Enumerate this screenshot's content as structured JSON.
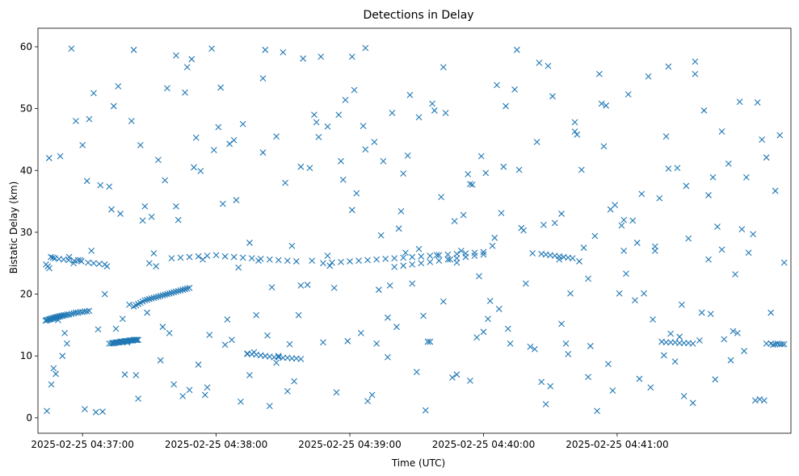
{
  "chart_data": {
    "type": "scatter",
    "title": "Detections in Delay",
    "xlabel": "Time (UTC)",
    "ylabel": "Bistatic Delay (km)",
    "x_is_time": true,
    "xlim": [
      "2025-02-25 04:36:40",
      "2025-02-25 04:42:18"
    ],
    "ylim": [
      -2.5,
      63
    ],
    "x_ticks": [
      {
        "value": "2025-02-25 04:37:00",
        "label": "2025-02-25 04:37:00"
      },
      {
        "value": "2025-02-25 04:38:00",
        "label": "2025-02-25 04:38:00"
      },
      {
        "value": "2025-02-25 04:39:00",
        "label": "2025-02-25 04:39:00"
      },
      {
        "value": "2025-02-25 04:40:00",
        "label": "2025-02-25 04:40:00"
      },
      {
        "value": "2025-02-25 04:41:00",
        "label": "2025-02-25 04:41:00"
      }
    ],
    "y_ticks": [
      0,
      10,
      20,
      30,
      40,
      50,
      60
    ],
    "grid": false,
    "marker": "x",
    "color": "#1f77b4",
    "x_start": "2025-02-25 04:36:40",
    "series": [
      {
        "name": "",
        "x_seconds_from_start": [
          3.4,
          3.8,
          4.3,
          4.8,
          5.2,
          5.6,
          6.0,
          6.5,
          7.0,
          7.5,
          8.0,
          8.5,
          9.0,
          9.5,
          10.0,
          10.6,
          11.2,
          11.8,
          12.5,
          13.2,
          14.0,
          15.0,
          16.0,
          17.0,
          18.0,
          19.0,
          20.0,
          21.0,
          22.0,
          23.0,
          3.6,
          4.4,
          5.1,
          5.8,
          6.7,
          7.6,
          9.4,
          11.5,
          13.8,
          16.3,
          19.5,
          22.5,
          25.0,
          27.5,
          30.0,
          32.0,
          33.0,
          33.5,
          34.0,
          34.5,
          35.0,
          35.5,
          36.0,
          36.5,
          37.0,
          37.5,
          38.0,
          38.5,
          39.0,
          39.5,
          40.0,
          40.5,
          41.0,
          41.5,
          42.0,
          42.5,
          43.0,
          43.5,
          44.0,
          44.5,
          45.0,
          43.0,
          44.0,
          45.0,
          46.0,
          47.0,
          48.0,
          49.0,
          50.0,
          51.0,
          52.0,
          53.0,
          54.0,
          55.0,
          56.0,
          57.0,
          58.0,
          59.0,
          60.0,
          61.0,
          62.0,
          63.0,
          64.0,
          65.0,
          66.0,
          67.0,
          68.0,
          60.0,
          64.0,
          68.0,
          72.0,
          76.0,
          80.0,
          84.0,
          88.0,
          92.0,
          96.0,
          100.0,
          104.0,
          108.0,
          112.0,
          116.0,
          94.0,
          96.0,
          98.0,
          100.0,
          102.0,
          104.0,
          106.0,
          108.0,
          110.0,
          112.0,
          114.0,
          116.0,
          118.0,
          128.0,
          132.0,
          136.0,
          140.0,
          144.0,
          148.0,
          152.0,
          156.0,
          160.0,
          164.0,
          168.0,
          172.0,
          176.0,
          180.0,
          184.0,
          188.0,
          192.0,
          196.0,
          200.0,
          160.0,
          164.0,
          168.0,
          172.0,
          176.0,
          180.0,
          184.0,
          188.0,
          192.0,
          196.0,
          200.0,
          226.0,
          228.0,
          230.0,
          232.0,
          234.0,
          236.0,
          238.0,
          240.0,
          280.0,
          282.0,
          284.0,
          286.0,
          288.0,
          290.0,
          292.0,
          294.0,
          327.0,
          329.0,
          331.0,
          333.0,
          335.0,
          6.0,
          10.0,
          14.0,
          18.0,
          23.0,
          28.0,
          31.0,
          36.0,
          40.0,
          46.0,
          52.0,
          57.0,
          63.0,
          68.0,
          73.0,
          78.0,
          84.0,
          89.0,
          95.0,
          101.0,
          107.0,
          113.0,
          118.0,
          124.0,
          130.0,
          136.0,
          141.0,
          147.0,
          153.0,
          159.0,
          165.0,
          171.0,
          176.0,
          182.0,
          188.0,
          194.0,
          200.0,
          206.0,
          212.0,
          218.0,
          224.0,
          229.0,
          235.0,
          241.0,
          247.0,
          253.0,
          259.0,
          265.0,
          271.0,
          277.0,
          283.0,
          289.0,
          295.0,
          301.0,
          307.0,
          313.0,
          319.0,
          325.0,
          331.0,
          335.0,
          8.0,
          15.0,
          21.0,
          27.0,
          34.0,
          41.0,
          47.0,
          54.0,
          61.0,
          67.0,
          74.0,
          81.0,
          87.0,
          94.0,
          101.0,
          107.0,
          114.0,
          121.0,
          127.0,
          134.0,
          141.0,
          147.0,
          154.0,
          161.0,
          167.0,
          174.0,
          181.0,
          187.0,
          194.0,
          201.0,
          207.0,
          214.0,
          221.0,
          227.0,
          234.0,
          241.0,
          247.0,
          254.0,
          261.0,
          267.0,
          274.0,
          281.0,
          287.0,
          294.0,
          301.0,
          307.0,
          314.0,
          321.0,
          327.0,
          333.0,
          5.0,
          12.0,
          19.0,
          26.0,
          33.0,
          39.0,
          45.0,
          51.0,
          58.0,
          65.0,
          71.0,
          77.0,
          83.0,
          90.0,
          97.0,
          103.0,
          110.0,
          117.0,
          123.0,
          130.0,
          137.0,
          143.0,
          150.0,
          157.0,
          163.0,
          170.0,
          177.0,
          183.0,
          190.0,
          197.0,
          203.0,
          210.0,
          217.0,
          223.0,
          230.0,
          237.0,
          243.0,
          250.0,
          257.0,
          263.0,
          270.0,
          277.0,
          283.0,
          290.0,
          297.0,
          303.0,
          310.0,
          317.0,
          323.0,
          330.0,
          4.0,
          11.0,
          17.0,
          24.0,
          30.0,
          37.0,
          43.0,
          49.0,
          56.0,
          62.0,
          69.0,
          75.0,
          82.0,
          88.0,
          95.0,
          102.0,
          108.0,
          115.0,
          122.0,
          128.0,
          135.0,
          142.0,
          148.0,
          155.0,
          162.0,
          168.0,
          175.0,
          182.0,
          188.0,
          195.0,
          202.0,
          208.0,
          215.0,
          222.0,
          228.0,
          235.0,
          242.0,
          248.0,
          255.0,
          262.0,
          268.0,
          275.0,
          282.0,
          288.0,
          295.0,
          302.0,
          308.0,
          315.0,
          322.0,
          329.0,
          7.0,
          13.0,
          20.0,
          25.0,
          32.0,
          38.0,
          44.0,
          50.0,
          55.0,
          62.0,
          70.0,
          76.0,
          85.0,
          92.0,
          99.0,
          105.0,
          112.0,
          119.0,
          126.0,
          133.0,
          139.0,
          146.0,
          152.0,
          158.0,
          166.0,
          173.0,
          179.0,
          186.0,
          193.0,
          199.0,
          205.0,
          211.0,
          219.0,
          226.0,
          232.0,
          239.0,
          245.0,
          252.0,
          258.0,
          264.0,
          272.0,
          279.0,
          286.0,
          292.0,
          299.0,
          305.0,
          312.0,
          318.0,
          324.0,
          332.0,
          9.0,
          16.0,
          22.0,
          29.0,
          35.0,
          42.0,
          48.0,
          53.0,
          59.0,
          66.0,
          72.0,
          79.0,
          86.0,
          91.0,
          98.0,
          104.0,
          111.0,
          118.0,
          125.0,
          131.0,
          138.0,
          145.0,
          151.0,
          157.0,
          164.0,
          171.0,
          178.0,
          185.0,
          191.0,
          198.0,
          204.0,
          209.0,
          216.0,
          225.0,
          231.0,
          238.0,
          244.0,
          251.0,
          256.0,
          263.0,
          269.0,
          276.0,
          284.0,
          291.0,
          298.0,
          304.0,
          311.0,
          316.0,
          326.0,
          334.0
        ],
        "y": [
          15.7,
          15.8,
          15.8,
          15.9,
          15.9,
          16.0,
          16.0,
          16.1,
          16.1,
          16.2,
          16.2,
          16.3,
          16.3,
          16.4,
          16.4,
          16.5,
          16.5,
          16.6,
          16.6,
          16.7,
          16.7,
          16.8,
          16.9,
          17.0,
          17.0,
          17.1,
          17.1,
          17.2,
          17.2,
          17.3,
          24.8,
          24.5,
          24.2,
          26.0,
          25.9,
          25.8,
          25.7,
          25.6,
          25.5,
          25.4,
          25.3,
          25.1,
          25.0,
          24.9,
          24.8,
          12.0,
          12.0,
          12.1,
          12.1,
          12.1,
          12.2,
          12.2,
          12.2,
          12.2,
          12.3,
          12.3,
          12.3,
          12.3,
          12.4,
          12.4,
          12.4,
          12.4,
          12.5,
          12.5,
          12.5,
          12.5,
          12.6,
          12.6,
          12.6,
          12.6,
          12.6,
          18.0,
          18.2,
          18.4,
          18.6,
          18.8,
          19.0,
          19.1,
          19.2,
          19.3,
          19.4,
          19.5,
          19.6,
          19.7,
          19.8,
          19.9,
          20.0,
          20.1,
          20.2,
          20.3,
          20.4,
          20.5,
          20.6,
          20.7,
          20.8,
          20.9,
          21.0,
          25.8,
          25.9,
          26.0,
          26.1,
          26.2,
          26.3,
          26.1,
          26.0,
          25.9,
          25.8,
          25.7,
          25.6,
          25.5,
          25.4,
          25.3,
          10.4,
          10.3,
          10.2,
          10.1,
          10.0,
          9.9,
          9.8,
          9.8,
          9.7,
          9.7,
          9.6,
          9.6,
          9.5,
          25.0,
          25.1,
          25.2,
          25.3,
          25.4,
          25.5,
          25.6,
          25.7,
          25.8,
          25.9,
          26.0,
          26.1,
          26.2,
          26.3,
          26.4,
          26.5,
          26.6,
          26.7,
          26.8,
          24.4,
          24.6,
          24.8,
          25.0,
          25.2,
          25.4,
          25.6,
          25.8,
          26.0,
          26.2,
          26.4,
          26.5,
          26.4,
          26.3,
          26.2,
          26.1,
          26.0,
          25.9,
          25.8,
          12.3,
          12.2,
          12.2,
          12.2,
          12.1,
          12.1,
          12.1,
          12.0,
          12.0,
          12.0,
          11.9,
          11.9,
          11.9,
          5.4,
          42.3,
          26.0,
          25.5,
          48.3,
          37.6,
          24.5,
          53.6,
          12.2,
          44.1,
          26.6,
          38.4,
          32.0,
          4.5,
          39.9,
          59.7,
          11.8,
          35.2,
          6.9,
          54.9,
          45.5,
          11.9,
          40.6,
          49.0,
          26.2,
          41.5,
          58.4,
          43.4,
          20.7,
          49.3,
          26.7,
          48.6,
          12.3,
          56.7,
          25.1,
          37.8,
          13.9,
          53.8,
          12.0,
          30.3,
          44.6,
          56.9,
          15.2,
          46.3,
          22.5,
          50.8,
          34.4,
          52.3,
          36.2,
          27.7,
          40.3,
          18.3,
          55.6,
          25.6,
          46.3,
          23.2,
          26.7,
          45.0,
          36.7,
          25.1,
          7.1,
          59.7,
          1.4,
          14.3,
          50.4,
          18.3,
          31.9,
          41.7,
          5.4,
          56.7,
          25.6,
          47.0,
          12.6,
          10.3,
          42.9,
          8.9,
          27.8,
          21.5,
          58.4,
          4.1,
          33.6,
          59.8,
          29.5,
          14.7,
          52.2,
          1.2,
          35.7,
          31.8,
          6.0,
          39.6,
          17.6,
          53.1,
          11.5,
          31.2,
          25.6,
          47.8,
          6.6,
          43.9,
          20.1,
          31.9,
          55.2,
          10.1,
          40.4,
          2.4,
          36.0,
          27.2,
          13.7,
          29.7,
          42.1,
          45.7,
          42.0,
          13.7,
          25.5,
          0.9,
          33.7,
          7.0,
          3.1,
          32.5,
          53.3,
          3.5,
          45.3,
          13.4,
          34.6,
          24.3,
          10.6,
          13.3,
          59.1,
          16.6,
          25.4,
          47.1,
          38.5,
          36.3,
          3.7,
          9.8,
          33.4,
          7.4,
          50.8,
          49.3,
          27.0,
          13.0,
          18.9,
          50.4,
          30.7,
          11.1,
          5.1,
          12.0,
          25.3,
          29.4,
          33.7,
          27.0,
          6.3,
          27.0,
          56.8,
          3.5,
          12.5,
          38.9,
          41.1,
          10.8,
          51.0,
          11.8,
          1.1,
          10.0,
          48.0,
          27.0,
          20.0,
          33.0,
          59.5,
          17.0,
          14.7,
          34.2,
          58.0,
          3.7,
          53.4,
          44.9,
          28.3,
          59.5,
          10.0,
          5.9,
          40.4,
          12.2,
          49.0,
          53.0,
          2.7,
          41.5,
          30.6,
          21.7,
          12.3,
          18.8,
          7.0,
          37.7,
          16.0,
          33.1,
          59.5,
          26.6,
          2.2,
          33.0,
          45.8,
          11.6,
          50.5,
          31.1,
          19.0,
          4.9,
          45.5,
          13.1,
          57.6,
          16.8,
          12.7,
          51.1,
          2.8,
          17.0,
          8.0,
          12.0,
          44.1,
          52.5,
          37.4,
          16.0,
          6.9,
          25.0,
          9.3,
          58.6,
          40.5,
          4.9,
          15.9,
          47.5,
          25.4,
          21.1,
          4.3,
          58.1,
          45.4,
          21.0,
          12.4,
          47.2,
          12.0,
          21.4,
          42.4,
          16.5,
          26.3,
          6.5,
          39.4,
          42.3,
          29.1,
          14.4,
          21.7,
          5.8,
          31.5,
          20.1,
          27.5,
          55.6,
          4.4,
          23.3,
          20.1,
          35.5,
          9.1,
          29.0,
          49.7,
          30.9,
          14.0,
          38.9,
          3.0,
          12.0,
          15.8,
          25.0,
          38.3,
          1.0,
          14.4,
          48.0,
          34.2,
          24.5,
          13.7,
          52.6,
          8.6,
          43.3,
          44.3,
          2.6,
          16.6,
          1.9,
          38.0,
          21.4,
          47.8,
          24.6,
          51.4,
          13.7,
          44.6,
          16.2,
          39.5,
          27.3,
          49.7,
          25.6,
          32.8,
          22.9,
          27.8,
          40.6,
          40.1,
          57.4,
          52.0,
          10.3,
          40.1,
          1.1,
          8.7,
          32.0,
          28.3,
          15.9,
          13.6,
          37.5,
          17.0,
          6.2,
          9.3,
          30.5,
          2.8,
          11.9
        ]
      }
    ]
  }
}
